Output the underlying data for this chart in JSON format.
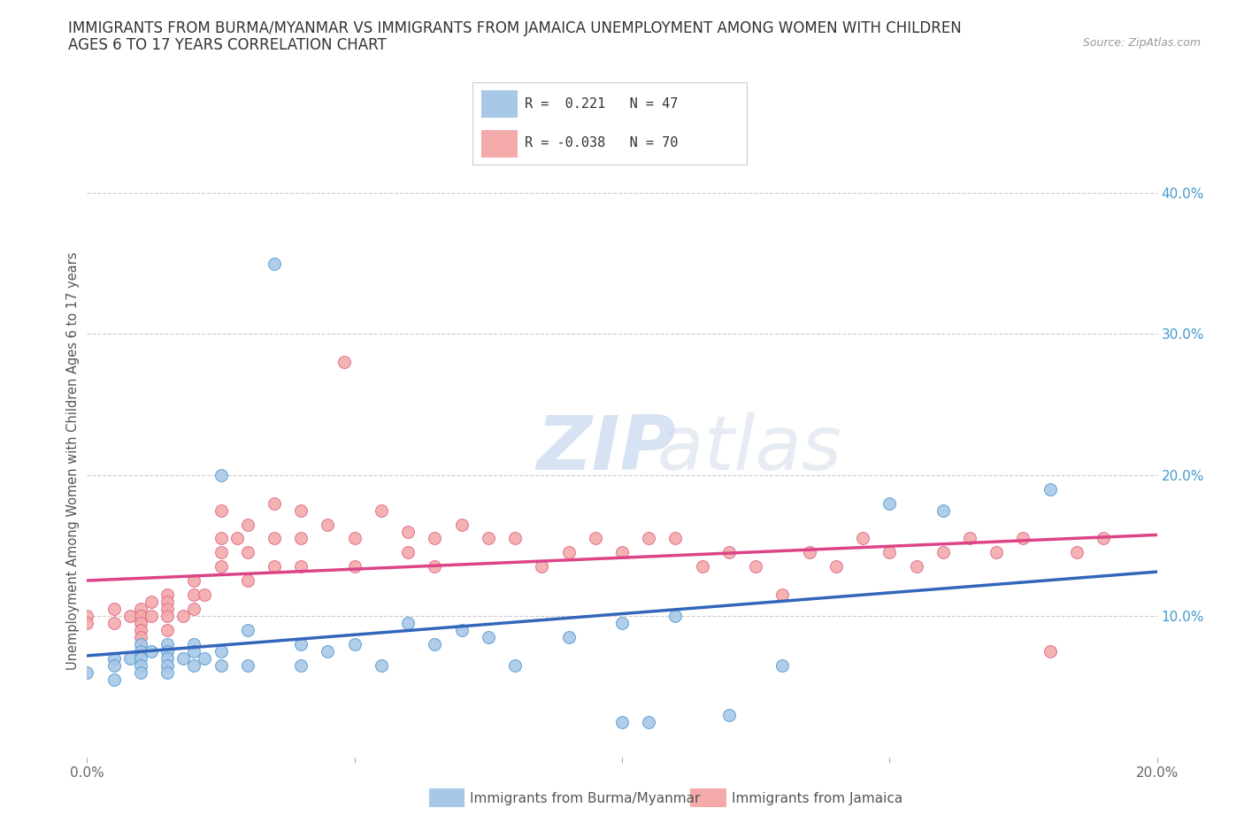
{
  "title_line1": "IMMIGRANTS FROM BURMA/MYANMAR VS IMMIGRANTS FROM JAMAICA UNEMPLOYMENT AMONG WOMEN WITH CHILDREN",
  "title_line2": "AGES 6 TO 17 YEARS CORRELATION CHART",
  "source_text": "Source: ZipAtlas.com",
  "watermark_zip": "ZIP",
  "watermark_atlas": "atlas",
  "xlabel": "",
  "ylabel": "Unemployment Among Women with Children Ages 6 to 17 years",
  "xlim": [
    0.0,
    0.2
  ],
  "ylim": [
    0.0,
    0.42
  ],
  "xticks": [
    0.0,
    0.05,
    0.1,
    0.15,
    0.2
  ],
  "xtick_labels": [
    "0.0%",
    "",
    "",
    "",
    "20.0%"
  ],
  "ytick_positions": [
    0.1,
    0.2,
    0.3,
    0.4
  ],
  "ytick_labels": [
    "10.0%",
    "20.0%",
    "30.0%",
    "40.0%"
  ],
  "series1_color": "#a8c8e8",
  "series1_color_edge": "#5599cc",
  "series1_label": "Immigrants from Burma/Myanmar",
  "series1_R": " 0.221",
  "series1_N": "47",
  "series2_color": "#f4aaaa",
  "series2_color_edge": "#dd6688",
  "series2_label": "Immigrants from Jamaica",
  "series2_R": "-0.038",
  "series2_N": "70",
  "trendline1_color": "#3366bb",
  "trendline2_color": "#dd4488",
  "background_color": "#ffffff",
  "grid_color": "#cccccc",
  "title_color": "#333333",
  "watermark_color_zip": "#b0c8e8",
  "watermark_color_atlas": "#d0d8e8",
  "series1_x": [
    0.0,
    0.005,
    0.005,
    0.005,
    0.008,
    0.01,
    0.01,
    0.01,
    0.01,
    0.01,
    0.012,
    0.015,
    0.015,
    0.015,
    0.015,
    0.015,
    0.018,
    0.02,
    0.02,
    0.02,
    0.022,
    0.025,
    0.025,
    0.025,
    0.03,
    0.03,
    0.035,
    0.04,
    0.04,
    0.045,
    0.05,
    0.055,
    0.06,
    0.065,
    0.07,
    0.075,
    0.08,
    0.09,
    0.1,
    0.1,
    0.105,
    0.11,
    0.12,
    0.13,
    0.15,
    0.16,
    0.18
  ],
  "series1_y": [
    0.06,
    0.07,
    0.065,
    0.055,
    0.07,
    0.08,
    0.075,
    0.07,
    0.065,
    0.06,
    0.075,
    0.08,
    0.075,
    0.07,
    0.065,
    0.06,
    0.07,
    0.08,
    0.075,
    0.065,
    0.07,
    0.2,
    0.075,
    0.065,
    0.09,
    0.065,
    0.35,
    0.08,
    0.065,
    0.075,
    0.08,
    0.065,
    0.095,
    0.08,
    0.09,
    0.085,
    0.065,
    0.085,
    0.095,
    0.025,
    0.025,
    0.1,
    0.03,
    0.065,
    0.18,
    0.175,
    0.19
  ],
  "series2_x": [
    0.0,
    0.0,
    0.005,
    0.005,
    0.008,
    0.01,
    0.01,
    0.01,
    0.01,
    0.01,
    0.012,
    0.012,
    0.015,
    0.015,
    0.015,
    0.015,
    0.015,
    0.018,
    0.02,
    0.02,
    0.02,
    0.022,
    0.025,
    0.025,
    0.025,
    0.025,
    0.028,
    0.03,
    0.03,
    0.03,
    0.035,
    0.035,
    0.035,
    0.04,
    0.04,
    0.04,
    0.045,
    0.048,
    0.05,
    0.05,
    0.055,
    0.06,
    0.06,
    0.065,
    0.065,
    0.07,
    0.075,
    0.08,
    0.085,
    0.09,
    0.095,
    0.1,
    0.105,
    0.11,
    0.115,
    0.12,
    0.125,
    0.13,
    0.135,
    0.14,
    0.145,
    0.15,
    0.155,
    0.16,
    0.165,
    0.17,
    0.175,
    0.18,
    0.185,
    0.19
  ],
  "series2_y": [
    0.1,
    0.095,
    0.105,
    0.095,
    0.1,
    0.105,
    0.1,
    0.095,
    0.09,
    0.085,
    0.11,
    0.1,
    0.115,
    0.11,
    0.105,
    0.1,
    0.09,
    0.1,
    0.125,
    0.115,
    0.105,
    0.115,
    0.175,
    0.155,
    0.145,
    0.135,
    0.155,
    0.165,
    0.145,
    0.125,
    0.18,
    0.155,
    0.135,
    0.175,
    0.155,
    0.135,
    0.165,
    0.28,
    0.155,
    0.135,
    0.175,
    0.16,
    0.145,
    0.155,
    0.135,
    0.165,
    0.155,
    0.155,
    0.135,
    0.145,
    0.155,
    0.145,
    0.155,
    0.155,
    0.135,
    0.145,
    0.135,
    0.115,
    0.145,
    0.135,
    0.155,
    0.145,
    0.135,
    0.145,
    0.155,
    0.145,
    0.155,
    0.075,
    0.145,
    0.155
  ]
}
